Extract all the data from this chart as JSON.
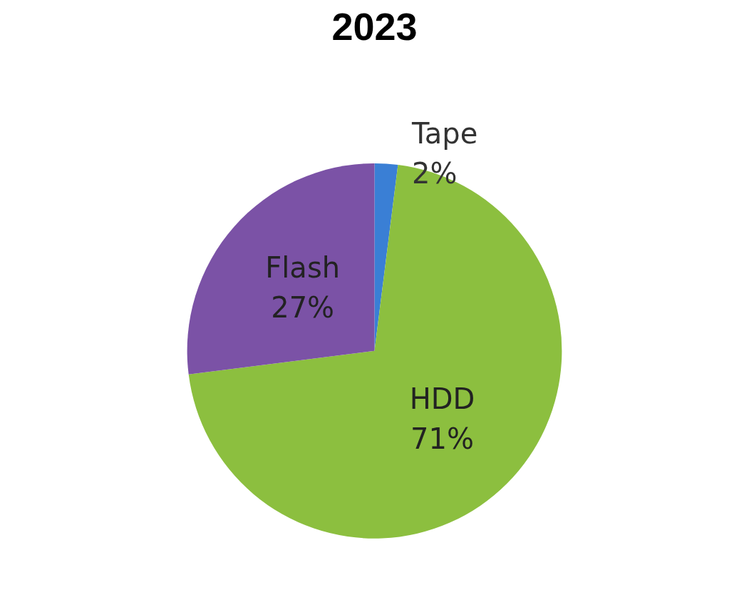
{
  "chart_data": {
    "type": "pie",
    "title": "2023",
    "categories": [
      "Tape",
      "HDD",
      "Flash"
    ],
    "values": [
      2,
      71,
      27
    ],
    "colors": [
      "#3a7fd5",
      "#8cbf3f",
      "#7b52a6"
    ],
    "value_labels": [
      "2%",
      "71%",
      "27%"
    ],
    "legend": false
  }
}
